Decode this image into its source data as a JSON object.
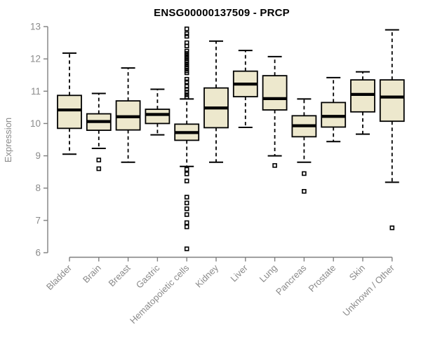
{
  "page": {
    "title": "ENSG00000137509 - PRCP"
  },
  "chart_data": {
    "type": "boxplot",
    "title": "ENSG00000137509 - PRCP",
    "xlabel": "",
    "ylabel": "Expression",
    "ylim": [
      6,
      13
    ],
    "yticks": [
      6,
      7,
      8,
      9,
      10,
      11,
      12,
      13
    ],
    "grid": false,
    "legend_position": "none",
    "colors": {
      "box_fill": "#EDE8CD",
      "box_border": "#000000",
      "median": "#000000",
      "whisker": "#000000",
      "outlier": "#000000",
      "axis": "#7f7f7f",
      "tick_label": "#8a8a8a",
      "title": "#000000"
    },
    "categories": [
      "Bladder",
      "Brain",
      "Breast",
      "Gastric",
      "Hematopoietic cells",
      "Kidney",
      "Liver",
      "Lung",
      "Pancreas",
      "Prostate",
      "Skin",
      "Unknown / Other"
    ],
    "series": [
      {
        "name": "Bladder",
        "whisker_low": 9.05,
        "q1": 9.85,
        "median": 10.42,
        "q3": 10.87,
        "whisker_high": 12.18,
        "outliers": []
      },
      {
        "name": "Brain",
        "whisker_low": 9.23,
        "q1": 9.79,
        "median": 10.06,
        "q3": 10.3,
        "whisker_high": 10.93,
        "outliers": [
          8.87,
          8.6
        ]
      },
      {
        "name": "Breast",
        "whisker_low": 8.8,
        "q1": 9.8,
        "median": 10.21,
        "q3": 10.7,
        "whisker_high": 11.72,
        "outliers": []
      },
      {
        "name": "Gastric",
        "whisker_low": 9.65,
        "q1": 10.0,
        "median": 10.28,
        "q3": 10.44,
        "whisker_high": 11.06,
        "outliers": []
      },
      {
        "name": "Hematopoietic cells",
        "whisker_low": 8.67,
        "q1": 9.48,
        "median": 9.72,
        "q3": 9.98,
        "whisker_high": 10.76,
        "outliers": [
          12.93,
          12.78,
          12.7,
          12.5,
          12.4,
          12.24,
          12.17,
          12.1,
          12.03,
          11.96,
          11.9,
          11.83,
          11.76,
          11.7,
          11.63,
          11.57,
          11.37,
          11.29,
          11.15,
          11.06,
          10.97,
          10.89,
          10.82,
          8.58,
          8.44,
          8.22,
          7.72,
          7.54,
          7.36,
          7.18,
          6.93,
          6.8,
          6.12
        ]
      },
      {
        "name": "Kidney",
        "whisker_low": 8.8,
        "q1": 9.87,
        "median": 10.48,
        "q3": 11.1,
        "whisker_high": 12.55,
        "outliers": []
      },
      {
        "name": "Liver",
        "whisker_low": 9.88,
        "q1": 10.83,
        "median": 11.22,
        "q3": 11.62,
        "whisker_high": 12.26,
        "outliers": []
      },
      {
        "name": "Lung",
        "whisker_low": 9.0,
        "q1": 10.42,
        "median": 10.77,
        "q3": 11.48,
        "whisker_high": 12.07,
        "outliers": [
          8.7
        ]
      },
      {
        "name": "Pancreas",
        "whisker_low": 8.8,
        "q1": 9.59,
        "median": 9.93,
        "q3": 10.24,
        "whisker_high": 10.76,
        "outliers": [
          8.45,
          7.9
        ]
      },
      {
        "name": "Prostate",
        "whisker_low": 9.44,
        "q1": 9.89,
        "median": 10.22,
        "q3": 10.65,
        "whisker_high": 11.42,
        "outliers": []
      },
      {
        "name": "Skin",
        "whisker_low": 9.67,
        "q1": 10.36,
        "median": 10.9,
        "q3": 11.35,
        "whisker_high": 11.6,
        "outliers": []
      },
      {
        "name": "Unknown / Other",
        "whisker_low": 8.18,
        "q1": 10.07,
        "median": 10.82,
        "q3": 11.35,
        "whisker_high": 12.9,
        "outliers": [
          6.77
        ]
      }
    ]
  }
}
